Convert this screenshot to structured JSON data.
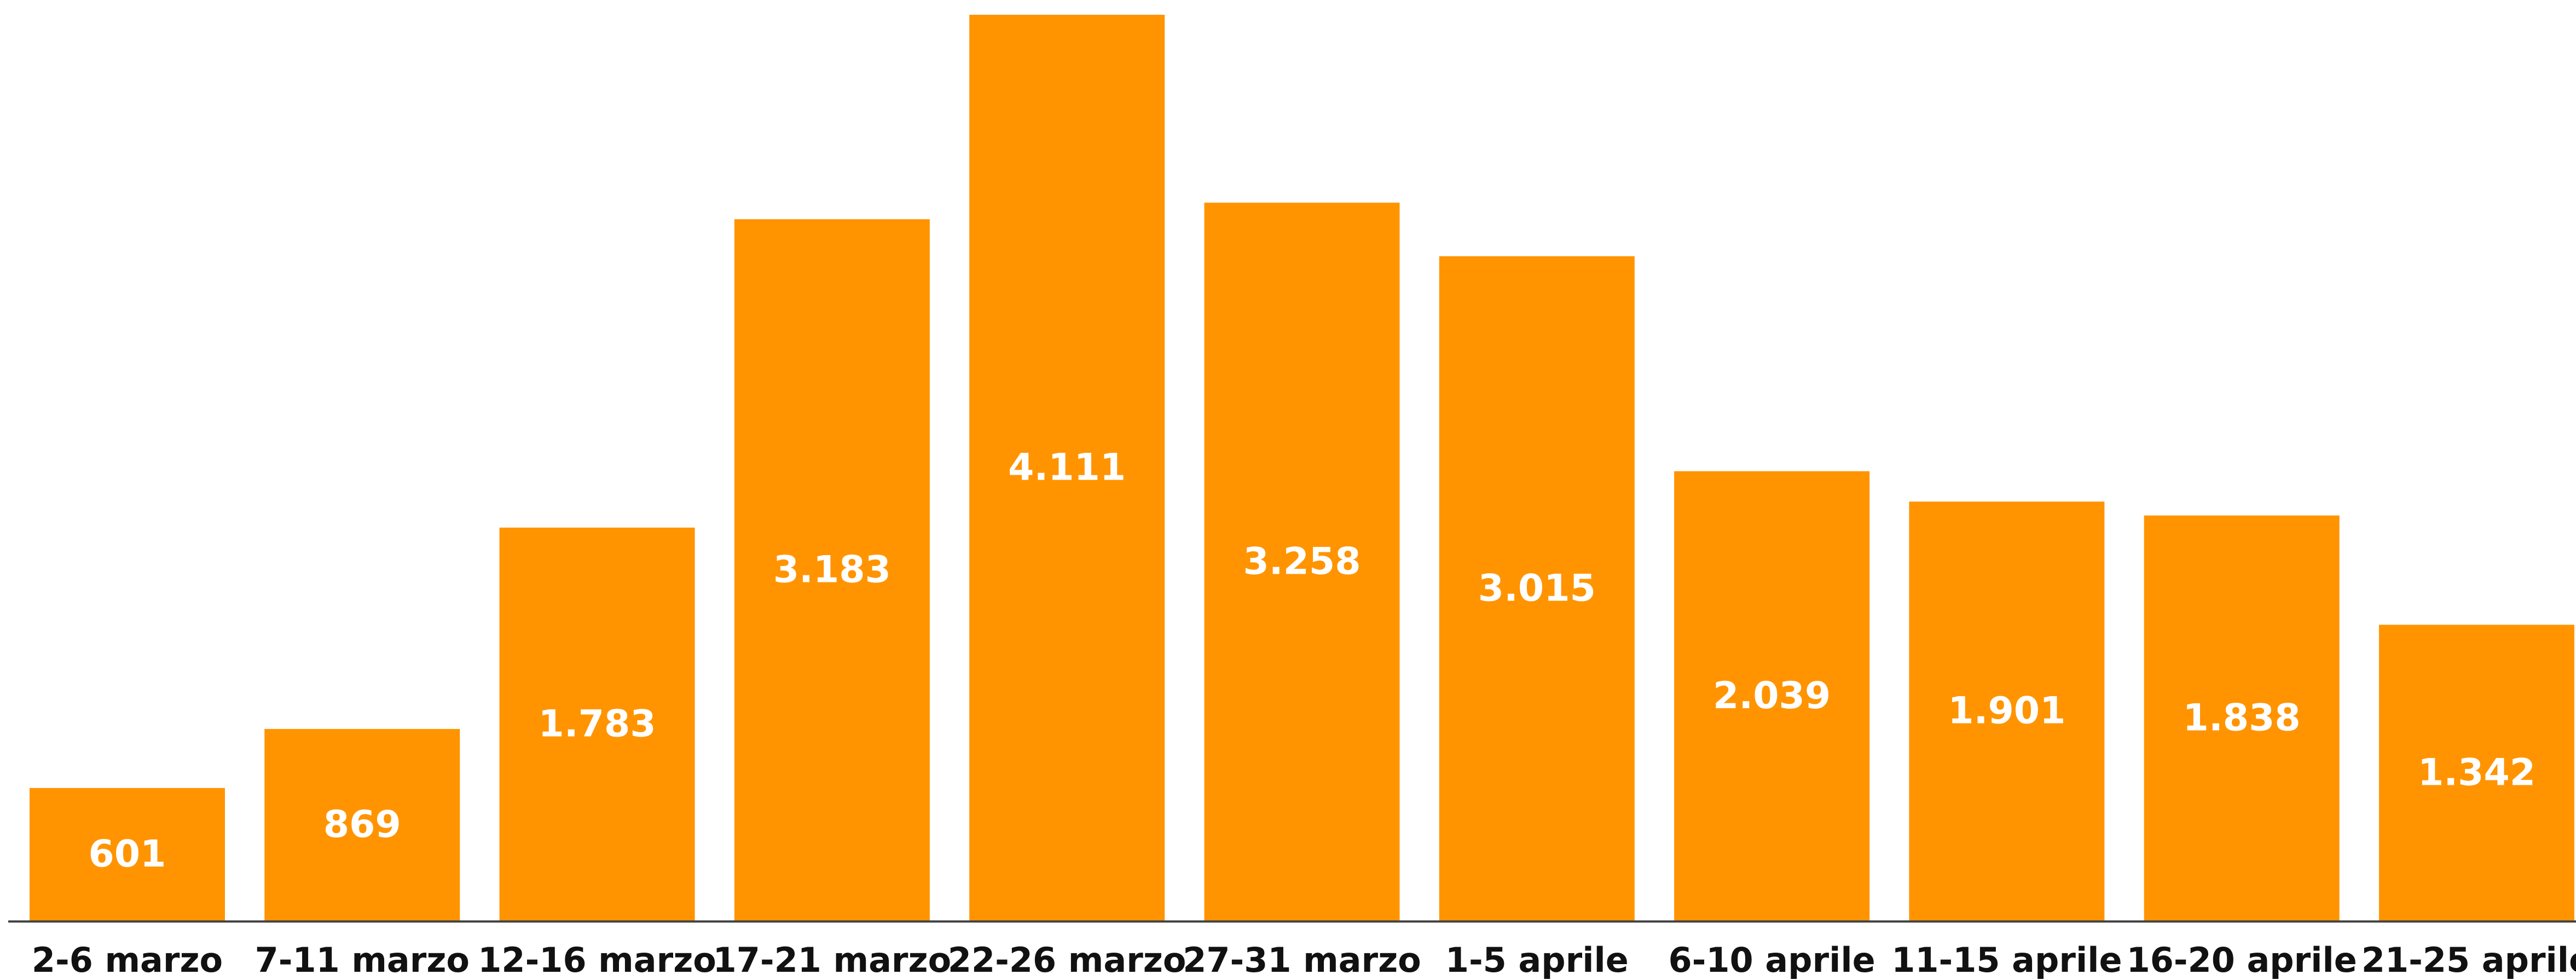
{
  "chart_data": {
    "type": "bar",
    "categories": [
      "2-6 marzo",
      "7-11 marzo",
      "12-16 marzo",
      "17-21 marzo",
      "22-26 marzo",
      "27-31 marzo",
      "1-5 aprile",
      "6-10 aprile",
      "11-15 aprile",
      "16-20 aprile",
      "21-25 aprile"
    ],
    "values": [
      601,
      869,
      1783,
      3183,
      4111,
      3258,
      3015,
      2039,
      1901,
      1838,
      1342
    ],
    "value_labels": [
      "601",
      "869",
      "1.783",
      "3.183",
      "4.111",
      "3.258",
      "3.015",
      "2.039",
      "1.901",
      "1.838",
      "1.342"
    ],
    "color": "#ff9400"
  }
}
